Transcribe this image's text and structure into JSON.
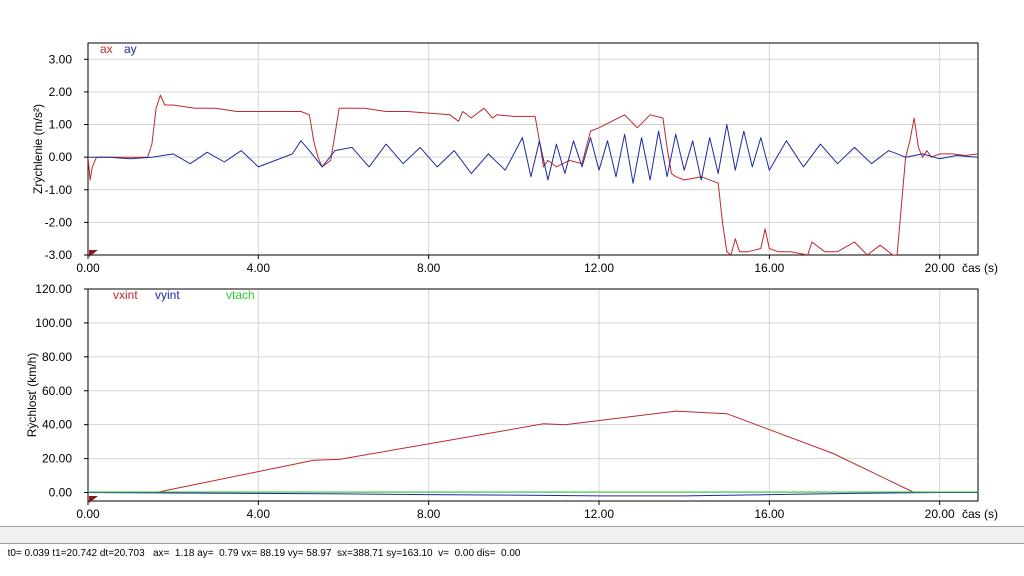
{
  "chart_data": [
    {
      "type": "line",
      "ylabel": "Zrýchlenie (m/s²)",
      "xlabel": "čas (s)",
      "xlim": [
        0,
        20.9
      ],
      "ylim": [
        -3.0,
        3.5
      ],
      "x_ticks": [
        0,
        4,
        8,
        12,
        16,
        20
      ],
      "x_tick_labels": [
        "0.00",
        "4.00",
        "8.00",
        "12.00",
        "16.00",
        "20.00"
      ],
      "y_ticks": [
        3,
        2,
        1,
        0,
        -1,
        -2,
        -3
      ],
      "y_tick_labels": [
        "3.00",
        "2.00",
        "1.00",
        "0.00",
        "-1.00",
        "-2.00",
        "-3.00"
      ],
      "grid": true,
      "legend_position": "top-left",
      "series": [
        {
          "name": "ax",
          "color": "#c0282d",
          "x": [
            0,
            0.05,
            0.1,
            0.2,
            0.3,
            0.5,
            0.8,
            1.1,
            1.4,
            1.5,
            1.6,
            1.7,
            1.8,
            2.0,
            2.5,
            3.0,
            3.5,
            4.0,
            4.5,
            5.0,
            5.2,
            5.3,
            5.4,
            5.5,
            5.7,
            5.9,
            6.0,
            6.5,
            7.0,
            7.5,
            8.0,
            8.5,
            8.7,
            8.8,
            9.0,
            9.3,
            9.5,
            9.6,
            10.0,
            10.5,
            10.6,
            10.7,
            10.8,
            11.0,
            11.3,
            11.6,
            11.8,
            12.0,
            12.3,
            12.6,
            12.9,
            13.2,
            13.5,
            13.6,
            13.7,
            13.8,
            14.0,
            14.4,
            14.8,
            14.9,
            15.0,
            15.1,
            15.2,
            15.3,
            15.5,
            15.8,
            15.9,
            16.0,
            16.2,
            16.5,
            16.9,
            17.0,
            17.3,
            17.6,
            18.0,
            18.3,
            18.6,
            18.9,
            19.0,
            19.2,
            19.3,
            19.4,
            19.5,
            19.6,
            19.7,
            19.8,
            20.0,
            20.3,
            20.6,
            20.9
          ],
          "y": [
            0,
            -0.7,
            -0.3,
            0,
            0,
            0,
            0,
            0,
            0,
            0.4,
            1.5,
            1.9,
            1.6,
            1.6,
            1.5,
            1.5,
            1.4,
            1.4,
            1.4,
            1.4,
            1.3,
            0.5,
            0,
            -0.3,
            -0.1,
            1.5,
            1.5,
            1.5,
            1.4,
            1.4,
            1.35,
            1.3,
            1.1,
            1.4,
            1.2,
            1.5,
            1.2,
            1.3,
            1.25,
            1.25,
            0.5,
            -0.3,
            -0.1,
            -0.3,
            -0.1,
            -0.2,
            0.8,
            0.9,
            1.1,
            1.3,
            0.9,
            1.3,
            1.2,
            0.3,
            -0.5,
            -0.6,
            -0.7,
            -0.6,
            -0.8,
            -2.0,
            -2.9,
            -3.0,
            -2.5,
            -2.9,
            -2.9,
            -2.8,
            -2.2,
            -2.8,
            -2.9,
            -2.9,
            -3.0,
            -2.6,
            -2.9,
            -2.9,
            -2.6,
            -3.0,
            -2.7,
            -3.0,
            -3.0,
            0.0,
            0.5,
            1.2,
            0.3,
            0.0,
            0.2,
            0.0,
            0.1,
            0.1,
            0.05,
            0.1
          ]
        },
        {
          "name": "ay",
          "color": "#1e2aa0",
          "x": [
            0,
            0.5,
            1.0,
            1.5,
            2.0,
            2.4,
            2.8,
            3.2,
            3.6,
            4.0,
            4.4,
            4.8,
            5.0,
            5.2,
            5.5,
            5.8,
            6.2,
            6.6,
            7.0,
            7.4,
            7.8,
            8.2,
            8.6,
            9.0,
            9.4,
            9.8,
            10.2,
            10.4,
            10.6,
            10.8,
            11.0,
            11.2,
            11.4,
            11.6,
            11.8,
            12.0,
            12.2,
            12.4,
            12.6,
            12.8,
            13.0,
            13.2,
            13.4,
            13.6,
            13.8,
            14.0,
            14.2,
            14.4,
            14.6,
            14.8,
            15.0,
            15.2,
            15.4,
            15.6,
            15.8,
            16.0,
            16.4,
            16.8,
            17.2,
            17.6,
            18.0,
            18.4,
            18.8,
            19.2,
            19.6,
            20.0,
            20.4,
            20.9
          ],
          "y": [
            0,
            0,
            -0.05,
            0,
            0.1,
            -0.2,
            0.15,
            -0.15,
            0.2,
            -0.3,
            -0.1,
            0.1,
            0.5,
            0.2,
            -0.3,
            0.2,
            0.3,
            -0.3,
            0.4,
            -0.2,
            0.3,
            -0.3,
            0.2,
            -0.5,
            0.1,
            -0.4,
            0.6,
            -0.6,
            0.5,
            -0.7,
            0.4,
            -0.5,
            0.5,
            -0.3,
            0.6,
            -0.4,
            0.5,
            -0.6,
            0.7,
            -0.8,
            0.6,
            -0.7,
            0.8,
            -0.6,
            0.7,
            -0.4,
            0.5,
            -0.7,
            0.6,
            -0.5,
            1.0,
            -0.4,
            0.8,
            -0.3,
            0.6,
            -0.4,
            0.5,
            -0.3,
            0.4,
            -0.2,
            0.3,
            -0.2,
            0.2,
            0.0,
            0.1,
            -0.05,
            0.05,
            0.0
          ]
        }
      ]
    },
    {
      "type": "line",
      "ylabel": "Rýchlosť (km/h)",
      "xlabel": "čas (s)",
      "xlim": [
        0,
        20.9
      ],
      "ylim": [
        -5,
        120
      ],
      "x_ticks": [
        0,
        4,
        8,
        12,
        16,
        20
      ],
      "x_tick_labels": [
        "0.00",
        "4.00",
        "8.00",
        "12.00",
        "16.00",
        "20.00"
      ],
      "y_ticks": [
        120,
        100,
        80,
        60,
        40,
        20,
        0
      ],
      "y_tick_labels": [
        "120.00",
        "100.00",
        "80.00",
        "60.00",
        "40.00",
        "20.00",
        "0.00"
      ],
      "grid": true,
      "legend_position": "top-left",
      "series": [
        {
          "name": "vxint",
          "color": "#c0282d",
          "x": [
            0,
            1.6,
            5.3,
            5.9,
            10.7,
            11.2,
            13.8,
            15.0,
            17.5,
            19.4,
            20.9
          ],
          "y": [
            0,
            0,
            19,
            19.5,
            40.5,
            40,
            48,
            46.5,
            23,
            0,
            0
          ]
        },
        {
          "name": "vyint",
          "color": "#1e2aa0",
          "x": [
            0,
            2,
            4,
            6,
            8,
            10,
            12,
            14,
            16,
            18,
            20,
            20.9
          ],
          "y": [
            0,
            -0.3,
            -0.5,
            -0.8,
            -1.2,
            -1.5,
            -2.0,
            -2.0,
            -1.2,
            -0.5,
            0,
            0
          ]
        },
        {
          "name": "vtach",
          "color": "#2ecc2e",
          "x": [
            0,
            20.9
          ],
          "y": [
            0.3,
            0.3
          ]
        }
      ]
    }
  ],
  "status_bar": {
    "text": "t0= 0.039 t1=20.742 dt=20.703   ax=  1.18 ay=  0.79 vx= 88.19 vy= 58.97  sx=388.71 sy=163.10  v=  0.00 dis=  0.00"
  }
}
